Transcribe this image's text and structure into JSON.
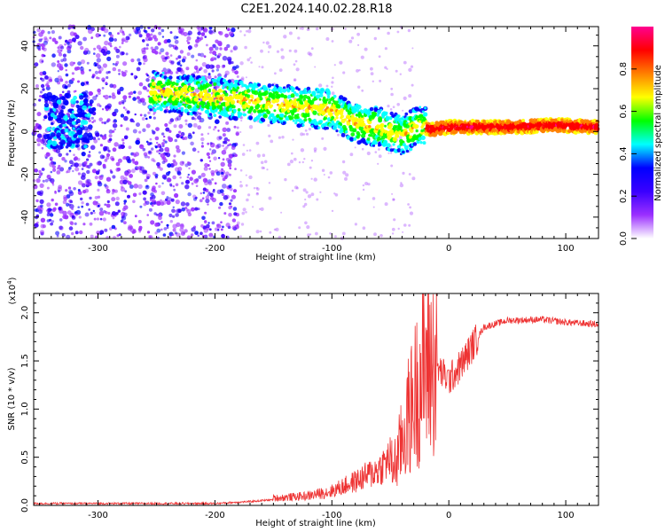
{
  "title": "C2E1.2024.140.02.28.R18",
  "chart_data": [
    {
      "type": "heatmap",
      "name": "spectrogram",
      "xlabel": "Height of straight line (km)",
      "ylabel": "Frequency (Hz)",
      "xlim": [
        -355,
        128
      ],
      "ylim": [
        -50,
        49
      ],
      "x_ticks": [
        -300,
        -200,
        -100,
        0,
        100
      ],
      "y_ticks": [
        -40,
        -20,
        0,
        20,
        40
      ],
      "colorbar": {
        "label": "Normalized spectral amplitude",
        "range": [
          0,
          1
        ],
        "ticks": [
          0.0,
          0.2,
          0.4,
          0.6,
          0.8
        ],
        "colors": [
          "#ffffff",
          "#9b30ff",
          "#3a00ff",
          "#0000ff",
          "#00ffff",
          "#00ff00",
          "#ffff00",
          "#ff8000",
          "#ff0000",
          "#ff0090"
        ]
      },
      "ridge": {
        "x": [
          -255,
          -200,
          -150,
          -100,
          -80,
          -60,
          -40,
          -25,
          -15,
          0,
          50,
          90,
          128
        ],
        "freq": [
          19,
          16,
          13,
          10,
          4,
          2,
          -2,
          3,
          1,
          2,
          2,
          3,
          2
        ]
      }
    },
    {
      "type": "line",
      "name": "snr",
      "xlabel": "Height of straight line (km)",
      "ylabel": "SNR (10 * v/v)",
      "y_multiplier": "(x10⁴)",
      "y_multiplier_exponent": "4",
      "xlim": [
        -355,
        128
      ],
      "ylim": [
        0,
        2.2
      ],
      "x_ticks": [
        -300,
        -200,
        -100,
        0,
        100
      ],
      "y_ticks": [
        0.0,
        0.5,
        1.0,
        1.5,
        2.0
      ],
      "color": "#ee3333",
      "series": [
        {
          "x": [
            -355,
            -300,
            -250,
            -200,
            -170,
            -150,
            -120,
            -100,
            -80,
            -60,
            -45,
            -35,
            -25,
            -18,
            -12,
            0,
            10,
            20,
            30,
            50,
            80,
            100,
            128
          ],
          "values": [
            0.02,
            0.02,
            0.02,
            0.02,
            0.04,
            0.06,
            0.08,
            0.12,
            0.2,
            0.3,
            0.45,
            0.9,
            1.3,
            1.5,
            1.45,
            1.3,
            1.45,
            1.65,
            1.85,
            1.92,
            1.93,
            1.9,
            1.88
          ]
        }
      ]
    }
  ],
  "x_tick_labels": [
    "-300",
    "-200",
    "-100",
    "0",
    "100"
  ],
  "top_y_tick_labels": [
    "-40",
    "-20",
    "0",
    "20",
    "40"
  ],
  "bottom_y_tick_labels": [
    "0.0",
    "0.5",
    "1.0",
    "1.5",
    "2.0"
  ],
  "colorbar_tick_labels": [
    "0.0",
    "0.2",
    "0.4",
    "0.6",
    "0.8"
  ]
}
